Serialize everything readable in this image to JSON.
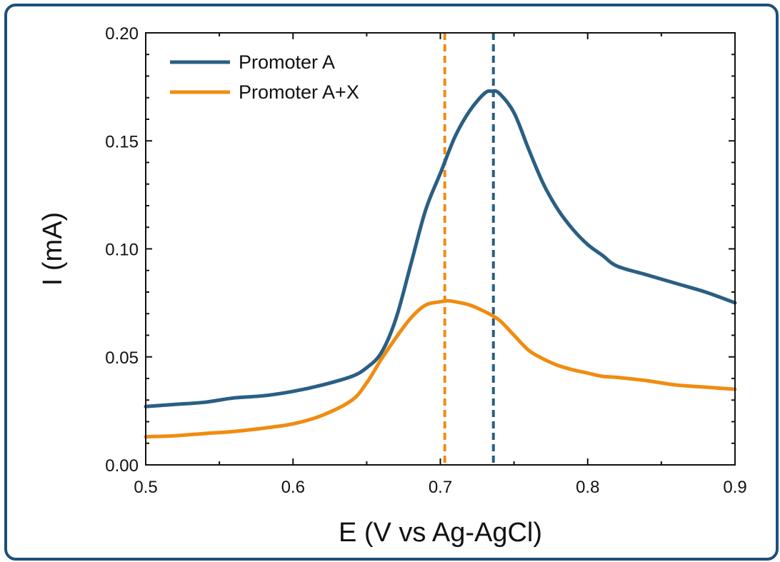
{
  "chart_data": {
    "type": "line",
    "title": "",
    "xlabel": "E (V vs Ag-AgCl)",
    "ylabel": "I (mA)",
    "xlim": [
      0.5,
      0.9
    ],
    "ylim": [
      0.0,
      0.2
    ],
    "xticks": [
      0.5,
      0.6,
      0.7,
      0.8,
      0.9
    ],
    "yticks": [
      0.0,
      0.05,
      0.1,
      0.15,
      0.2
    ],
    "xtick_labels": [
      "0.5",
      "0.6",
      "0.7",
      "0.8",
      "0.9"
    ],
    "ytick_labels": [
      "0.00",
      "0.05",
      "0.10",
      "0.15",
      "0.20"
    ],
    "grid": false,
    "legend_position": "top-left",
    "series": [
      {
        "name": "Promoter A",
        "color": "#2a5f84",
        "x": [
          0.5,
          0.52,
          0.54,
          0.56,
          0.58,
          0.6,
          0.62,
          0.64,
          0.65,
          0.66,
          0.67,
          0.68,
          0.69,
          0.7,
          0.71,
          0.72,
          0.73,
          0.735,
          0.74,
          0.75,
          0.76,
          0.77,
          0.78,
          0.79,
          0.8,
          0.81,
          0.82,
          0.84,
          0.86,
          0.88,
          0.9
        ],
        "y": [
          0.027,
          0.028,
          0.029,
          0.031,
          0.032,
          0.034,
          0.037,
          0.041,
          0.045,
          0.052,
          0.068,
          0.093,
          0.118,
          0.135,
          0.152,
          0.164,
          0.172,
          0.173,
          0.172,
          0.163,
          0.146,
          0.13,
          0.118,
          0.109,
          0.102,
          0.097,
          0.092,
          0.088,
          0.084,
          0.08,
          0.075
        ]
      },
      {
        "name": "Promoter A+X",
        "color": "#f08c10",
        "x": [
          0.5,
          0.52,
          0.54,
          0.56,
          0.58,
          0.6,
          0.62,
          0.64,
          0.65,
          0.66,
          0.67,
          0.68,
          0.69,
          0.7,
          0.705,
          0.71,
          0.72,
          0.73,
          0.74,
          0.75,
          0.76,
          0.77,
          0.78,
          0.79,
          0.8,
          0.81,
          0.82,
          0.84,
          0.86,
          0.88,
          0.9
        ],
        "y": [
          0.013,
          0.0135,
          0.0145,
          0.0155,
          0.017,
          0.019,
          0.023,
          0.03,
          0.038,
          0.049,
          0.059,
          0.068,
          0.074,
          0.0755,
          0.076,
          0.0755,
          0.074,
          0.071,
          0.067,
          0.06,
          0.053,
          0.049,
          0.046,
          0.044,
          0.0425,
          0.041,
          0.0405,
          0.039,
          0.037,
          0.036,
          0.035
        ]
      }
    ],
    "reference_lines": [
      {
        "x": 0.703,
        "color": "#f08c10",
        "style": "dashed"
      },
      {
        "x": 0.736,
        "color": "#2a5f84",
        "style": "dashed"
      }
    ]
  }
}
